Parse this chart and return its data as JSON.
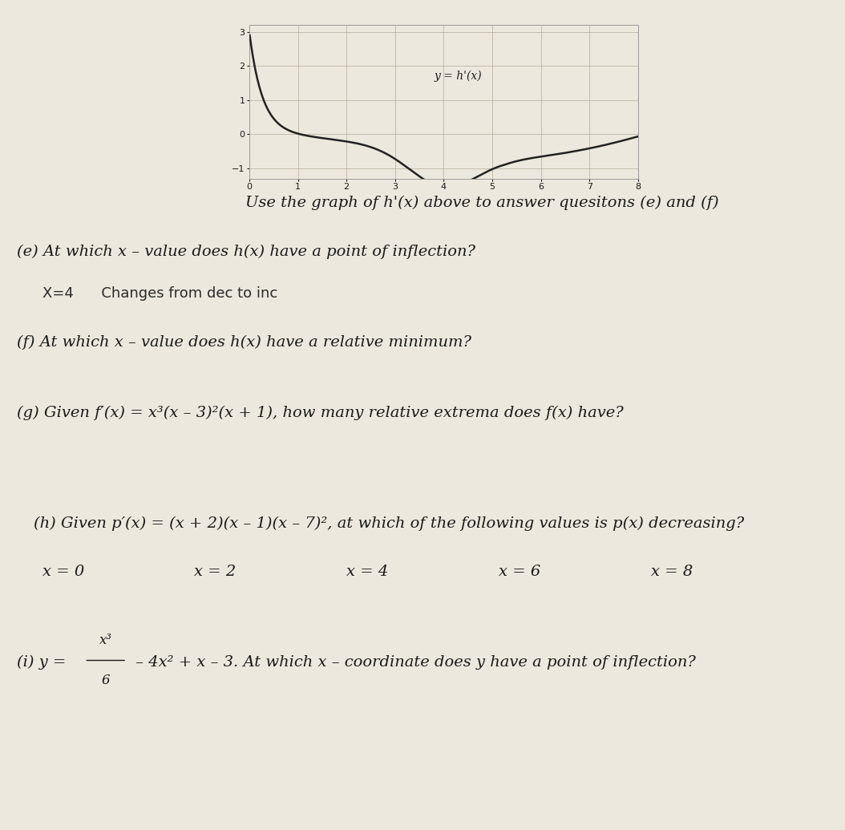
{
  "bg_color": "#e8e3d8",
  "paper_color": "#ede8dd",
  "graph_title": "y = h'(x)",
  "graph_xlim": [
    0,
    8
  ],
  "graph_ylim": [
    -1.3,
    3.2
  ],
  "graph_xticks": [
    0,
    1,
    2,
    3,
    4,
    5,
    6,
    7,
    8
  ],
  "graph_yticks": [
    -1,
    0,
    1,
    2,
    3
  ],
  "line_color": "#222222",
  "grid_color": "#b0a898",
  "instruction_text": "Use the graph of h'(x) above to answer quesitons (e) and (f)",
  "part_e_label": "(e) At which x – value does h(x) have a point of inflection?",
  "part_e_answer": "X=4      Changes from dec to inc",
  "part_f_label": "(f) At which x – value does h(x) have a relative minimum?",
  "part_g_label": "(g) Given f′(x) = x³(x – 3)²(x + 1), how many relative extrema does f(x) have?",
  "part_h_label": "(h) Given p′(x) = (x + 2)(x – 1)(x – 7)², at which of the following values is p(x) decreasing?",
  "part_h_values": [
    "x = 0",
    "x = 2",
    "x = 4",
    "x = 6",
    "x = 8"
  ],
  "part_i_prefix": "(i) y = ",
  "part_i_suffix": " – 4x² + x – 3. At which x – coordinate does y have a point of inflection?",
  "text_color": "#1a1a1a",
  "handwritten_color": "#2a2a2a",
  "font_size_main": 14,
  "font_size_small": 11
}
